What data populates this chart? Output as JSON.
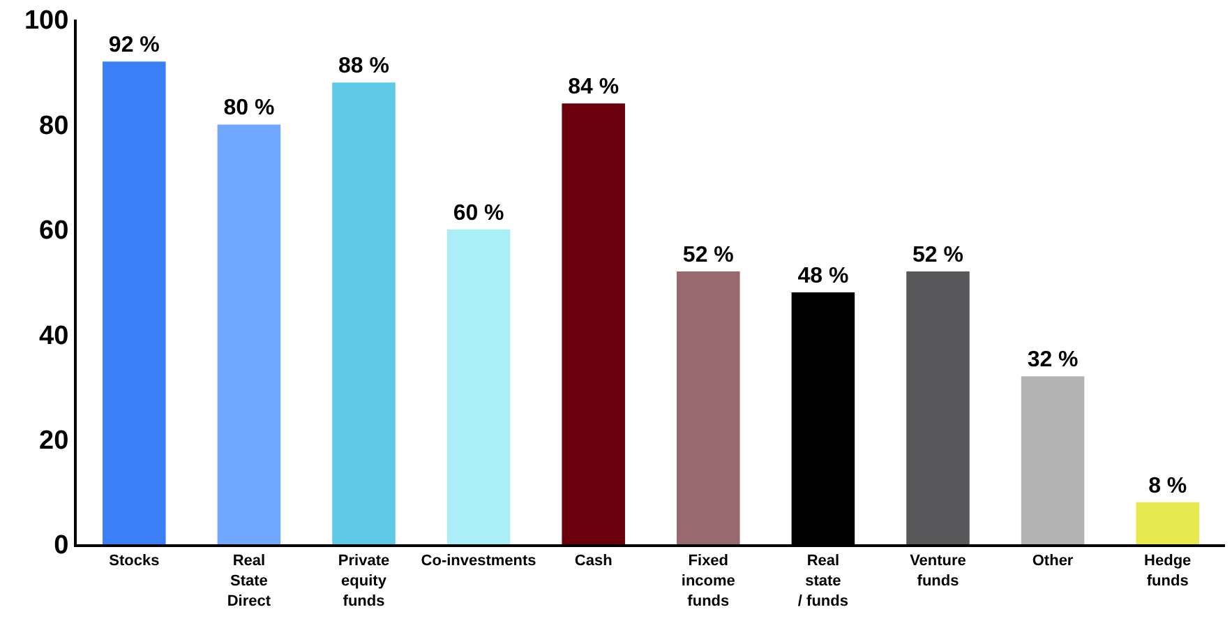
{
  "chart_data": {
    "type": "bar",
    "categories": [
      "Stocks",
      "Real\nState\nDirect",
      "Private\nequity\nfunds",
      "Co-investments",
      "Cash",
      "Fixed\nincome\nfunds",
      "Real\nstate\n/ funds",
      "Venture\nfunds",
      "Other",
      "Hedge\nfunds"
    ],
    "values": [
      92,
      80,
      88,
      60,
      84,
      52,
      48,
      52,
      32,
      8
    ],
    "value_labels": [
      "92 %",
      "80 %",
      "88 %",
      "60 %",
      "84 %",
      "52 %",
      "48 %",
      "52 %",
      "32 %",
      "8 %"
    ],
    "colors": [
      "#3a7ff5",
      "#70a8ff",
      "#5ecae6",
      "#aaeef8",
      "#6a000b",
      "#98696e",
      "#000000",
      "#58585a",
      "#b3b3b3",
      "#e8e84f"
    ],
    "ylim": [
      0,
      100
    ],
    "yticks": [
      0,
      20,
      40,
      60,
      80,
      100
    ]
  }
}
